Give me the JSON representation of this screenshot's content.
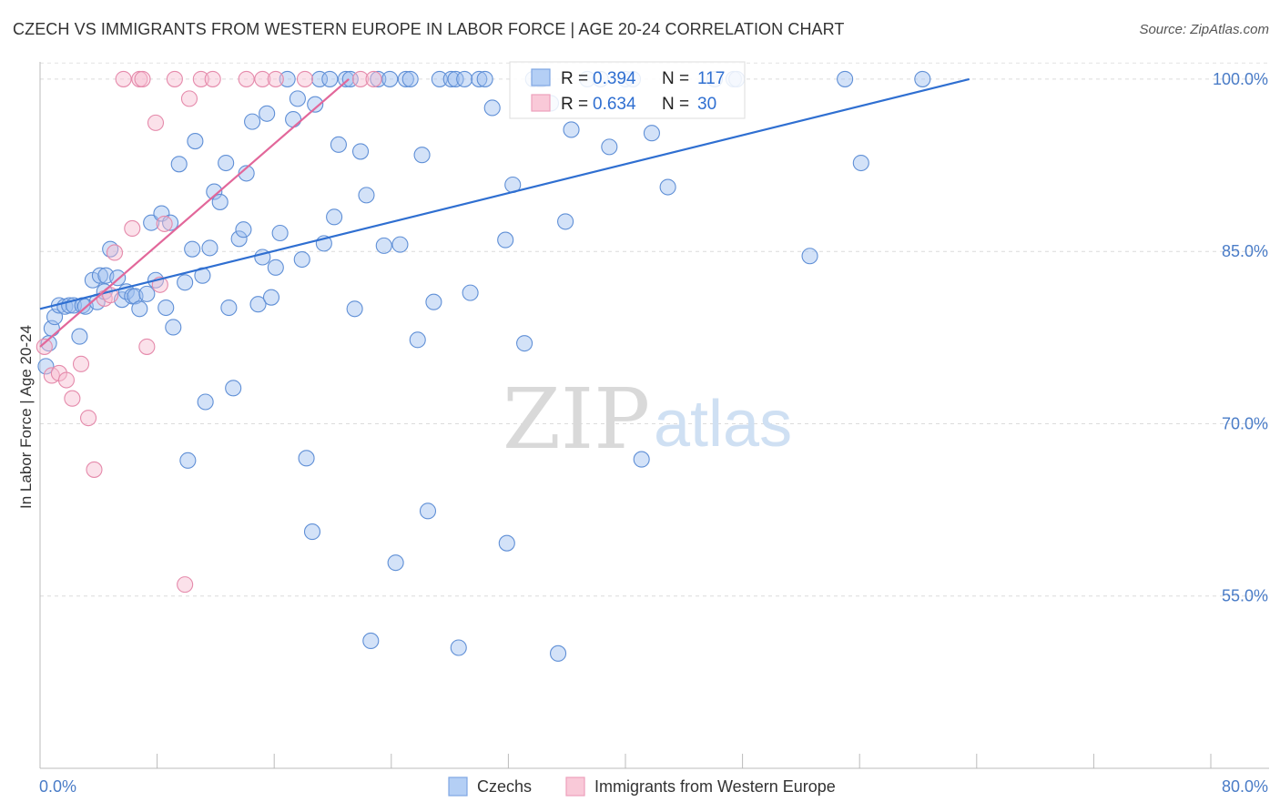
{
  "chart_data": {
    "type": "scatter",
    "title": "CZECH VS IMMIGRANTS FROM WESTERN EUROPE IN LABOR FORCE | AGE 20-24 CORRELATION CHART",
    "source": "Source: ZipAtlas.com",
    "xlabel": "",
    "ylabel": "In Labor Force | Age 20-24",
    "xlim": [
      0,
      80
    ],
    "ylim": [
      40,
      101.5
    ],
    "x_tick_labels": [
      {
        "value": 0,
        "label": "0.0%"
      },
      {
        "value": 80,
        "label": "80.0%"
      }
    ],
    "y_tick_labels": [
      {
        "value": 100,
        "label": "100.0%"
      },
      {
        "value": 85,
        "label": "85.0%"
      },
      {
        "value": 70,
        "label": "70.0%"
      },
      {
        "value": 55,
        "label": "55.0%"
      }
    ],
    "grid": true,
    "watermark": {
      "zip": "ZIP",
      "atlas": "atlas"
    },
    "stats_box": {
      "rows": [
        {
          "r_label": "R =",
          "r_value": "0.394",
          "n_label": "N =",
          "n_value": "117"
        },
        {
          "r_label": "R =",
          "r_value": "0.634",
          "n_label": "N =",
          "n_value": "30"
        }
      ]
    },
    "series": [
      {
        "name": "Czechs",
        "color": "#9dbff0",
        "stroke": "#5f8fd6",
        "trend_color": "#2f6fd1",
        "trend": {
          "x": [
            0,
            63.5
          ],
          "y": [
            80.0,
            100.0
          ]
        },
        "points": [
          [
            0.4,
            75.0
          ],
          [
            0.6,
            77.0
          ],
          [
            0.8,
            78.3
          ],
          [
            1.0,
            79.3
          ],
          [
            1.3,
            80.3
          ],
          [
            1.7,
            80.2
          ],
          [
            2.0,
            80.3
          ],
          [
            2.3,
            80.3
          ],
          [
            2.7,
            77.6
          ],
          [
            2.9,
            80.3
          ],
          [
            3.1,
            80.2
          ],
          [
            3.6,
            82.5
          ],
          [
            3.9,
            80.6
          ],
          [
            4.1,
            82.9
          ],
          [
            4.4,
            81.5
          ],
          [
            4.5,
            82.9
          ],
          [
            4.8,
            85.2
          ],
          [
            5.3,
            82.7
          ],
          [
            5.6,
            80.8
          ],
          [
            5.9,
            81.5
          ],
          [
            6.3,
            81.1
          ],
          [
            6.5,
            81.1
          ],
          [
            6.8,
            80.0
          ],
          [
            7.3,
            81.3
          ],
          [
            7.6,
            87.5
          ],
          [
            7.9,
            82.5
          ],
          [
            8.3,
            88.3
          ],
          [
            8.6,
            80.1
          ],
          [
            8.9,
            87.5
          ],
          [
            9.1,
            78.4
          ],
          [
            9.5,
            92.6
          ],
          [
            9.9,
            82.3
          ],
          [
            10.1,
            66.8
          ],
          [
            10.4,
            85.2
          ],
          [
            10.6,
            94.6
          ],
          [
            11.1,
            82.9
          ],
          [
            11.3,
            71.9
          ],
          [
            11.6,
            85.3
          ],
          [
            11.9,
            90.2
          ],
          [
            12.3,
            89.3
          ],
          [
            12.7,
            92.7
          ],
          [
            12.9,
            80.1
          ],
          [
            13.2,
            73.1
          ],
          [
            13.6,
            86.1
          ],
          [
            13.9,
            86.9
          ],
          [
            14.1,
            91.8
          ],
          [
            14.5,
            96.3
          ],
          [
            14.9,
            80.4
          ],
          [
            15.2,
            84.5
          ],
          [
            15.5,
            97.0
          ],
          [
            15.8,
            81.0
          ],
          [
            16.1,
            83.6
          ],
          [
            16.4,
            86.6
          ],
          [
            16.9,
            100.0
          ],
          [
            17.3,
            96.5
          ],
          [
            17.6,
            98.3
          ],
          [
            17.9,
            84.3
          ],
          [
            18.2,
            67.0
          ],
          [
            18.6,
            60.6
          ],
          [
            18.8,
            97.8
          ],
          [
            19.1,
            100.0
          ],
          [
            19.4,
            85.7
          ],
          [
            19.8,
            100.0
          ],
          [
            20.1,
            88.0
          ],
          [
            20.4,
            94.3
          ],
          [
            20.9,
            100.0
          ],
          [
            21.2,
            100.0
          ],
          [
            21.5,
            80.0
          ],
          [
            21.9,
            93.7
          ],
          [
            22.3,
            89.9
          ],
          [
            22.6,
            51.1
          ],
          [
            23.1,
            100.0
          ],
          [
            23.5,
            85.5
          ],
          [
            23.9,
            100.0
          ],
          [
            24.3,
            57.9
          ],
          [
            24.6,
            85.6
          ],
          [
            25.0,
            100.0
          ],
          [
            25.3,
            100.0
          ],
          [
            25.8,
            77.3
          ],
          [
            26.1,
            93.4
          ],
          [
            26.5,
            62.4
          ],
          [
            26.9,
            80.6
          ],
          [
            27.3,
            100.0
          ],
          [
            28.1,
            100.0
          ],
          [
            28.4,
            100.0
          ],
          [
            28.6,
            50.5
          ],
          [
            29.0,
            100.0
          ],
          [
            29.4,
            81.4
          ],
          [
            30.0,
            100.0
          ],
          [
            30.4,
            100.0
          ],
          [
            30.9,
            97.5
          ],
          [
            31.8,
            86.0
          ],
          [
            31.9,
            59.6
          ],
          [
            32.3,
            90.8
          ],
          [
            33.1,
            77.0
          ],
          [
            33.7,
            100.0
          ],
          [
            34.1,
            100.0
          ],
          [
            34.3,
            100.0
          ],
          [
            34.9,
            97.9
          ],
          [
            35.4,
            50.0
          ],
          [
            35.9,
            87.6
          ],
          [
            36.3,
            95.6
          ],
          [
            37.4,
            100.0
          ],
          [
            38.3,
            100.0
          ],
          [
            38.9,
            94.1
          ],
          [
            40.0,
            100.0
          ],
          [
            40.5,
            100.0
          ],
          [
            41.1,
            66.9
          ],
          [
            41.8,
            95.3
          ],
          [
            42.9,
            90.6
          ],
          [
            46.1,
            100.0
          ],
          [
            47.4,
            100.0
          ],
          [
            47.6,
            100.0
          ],
          [
            52.6,
            84.6
          ],
          [
            55.0,
            100.0
          ],
          [
            56.1,
            92.7
          ],
          [
            60.3,
            100.0
          ]
        ]
      },
      {
        "name": "Immigrants from Western Europe",
        "color": "#f7bcd0",
        "stroke": "#e58aab",
        "trend_color": "#e2679a",
        "trend": {
          "x": [
            0,
            21.1
          ],
          "y": [
            76.7,
            100.0
          ]
        },
        "points": [
          [
            0.3,
            76.7
          ],
          [
            0.8,
            74.2
          ],
          [
            1.3,
            74.4
          ],
          [
            1.8,
            73.8
          ],
          [
            2.2,
            72.2
          ],
          [
            2.8,
            75.2
          ],
          [
            3.3,
            70.5
          ],
          [
            3.7,
            66.0
          ],
          [
            4.4,
            80.9
          ],
          [
            4.8,
            81.2
          ],
          [
            5.1,
            84.9
          ],
          [
            5.7,
            100.0
          ],
          [
            6.3,
            87.0
          ],
          [
            6.8,
            100.0
          ],
          [
            7.0,
            100.0
          ],
          [
            7.3,
            76.7
          ],
          [
            7.9,
            96.2
          ],
          [
            8.2,
            82.1
          ],
          [
            8.5,
            87.4
          ],
          [
            9.2,
            100.0
          ],
          [
            9.9,
            56.0
          ],
          [
            10.2,
            98.3
          ],
          [
            11.0,
            100.0
          ],
          [
            11.8,
            100.0
          ],
          [
            14.1,
            100.0
          ],
          [
            15.2,
            100.0
          ],
          [
            16.1,
            100.0
          ],
          [
            18.1,
            100.0
          ],
          [
            21.9,
            100.0
          ],
          [
            22.8,
            100.0
          ]
        ]
      }
    ]
  },
  "legend": {
    "items": [
      {
        "label": "Czechs",
        "color": "#b4cff5",
        "stroke": "#7ea6e3"
      },
      {
        "label": "Immigrants from Western Europe",
        "color": "#f9c9d8",
        "stroke": "#eda1bc"
      }
    ]
  }
}
